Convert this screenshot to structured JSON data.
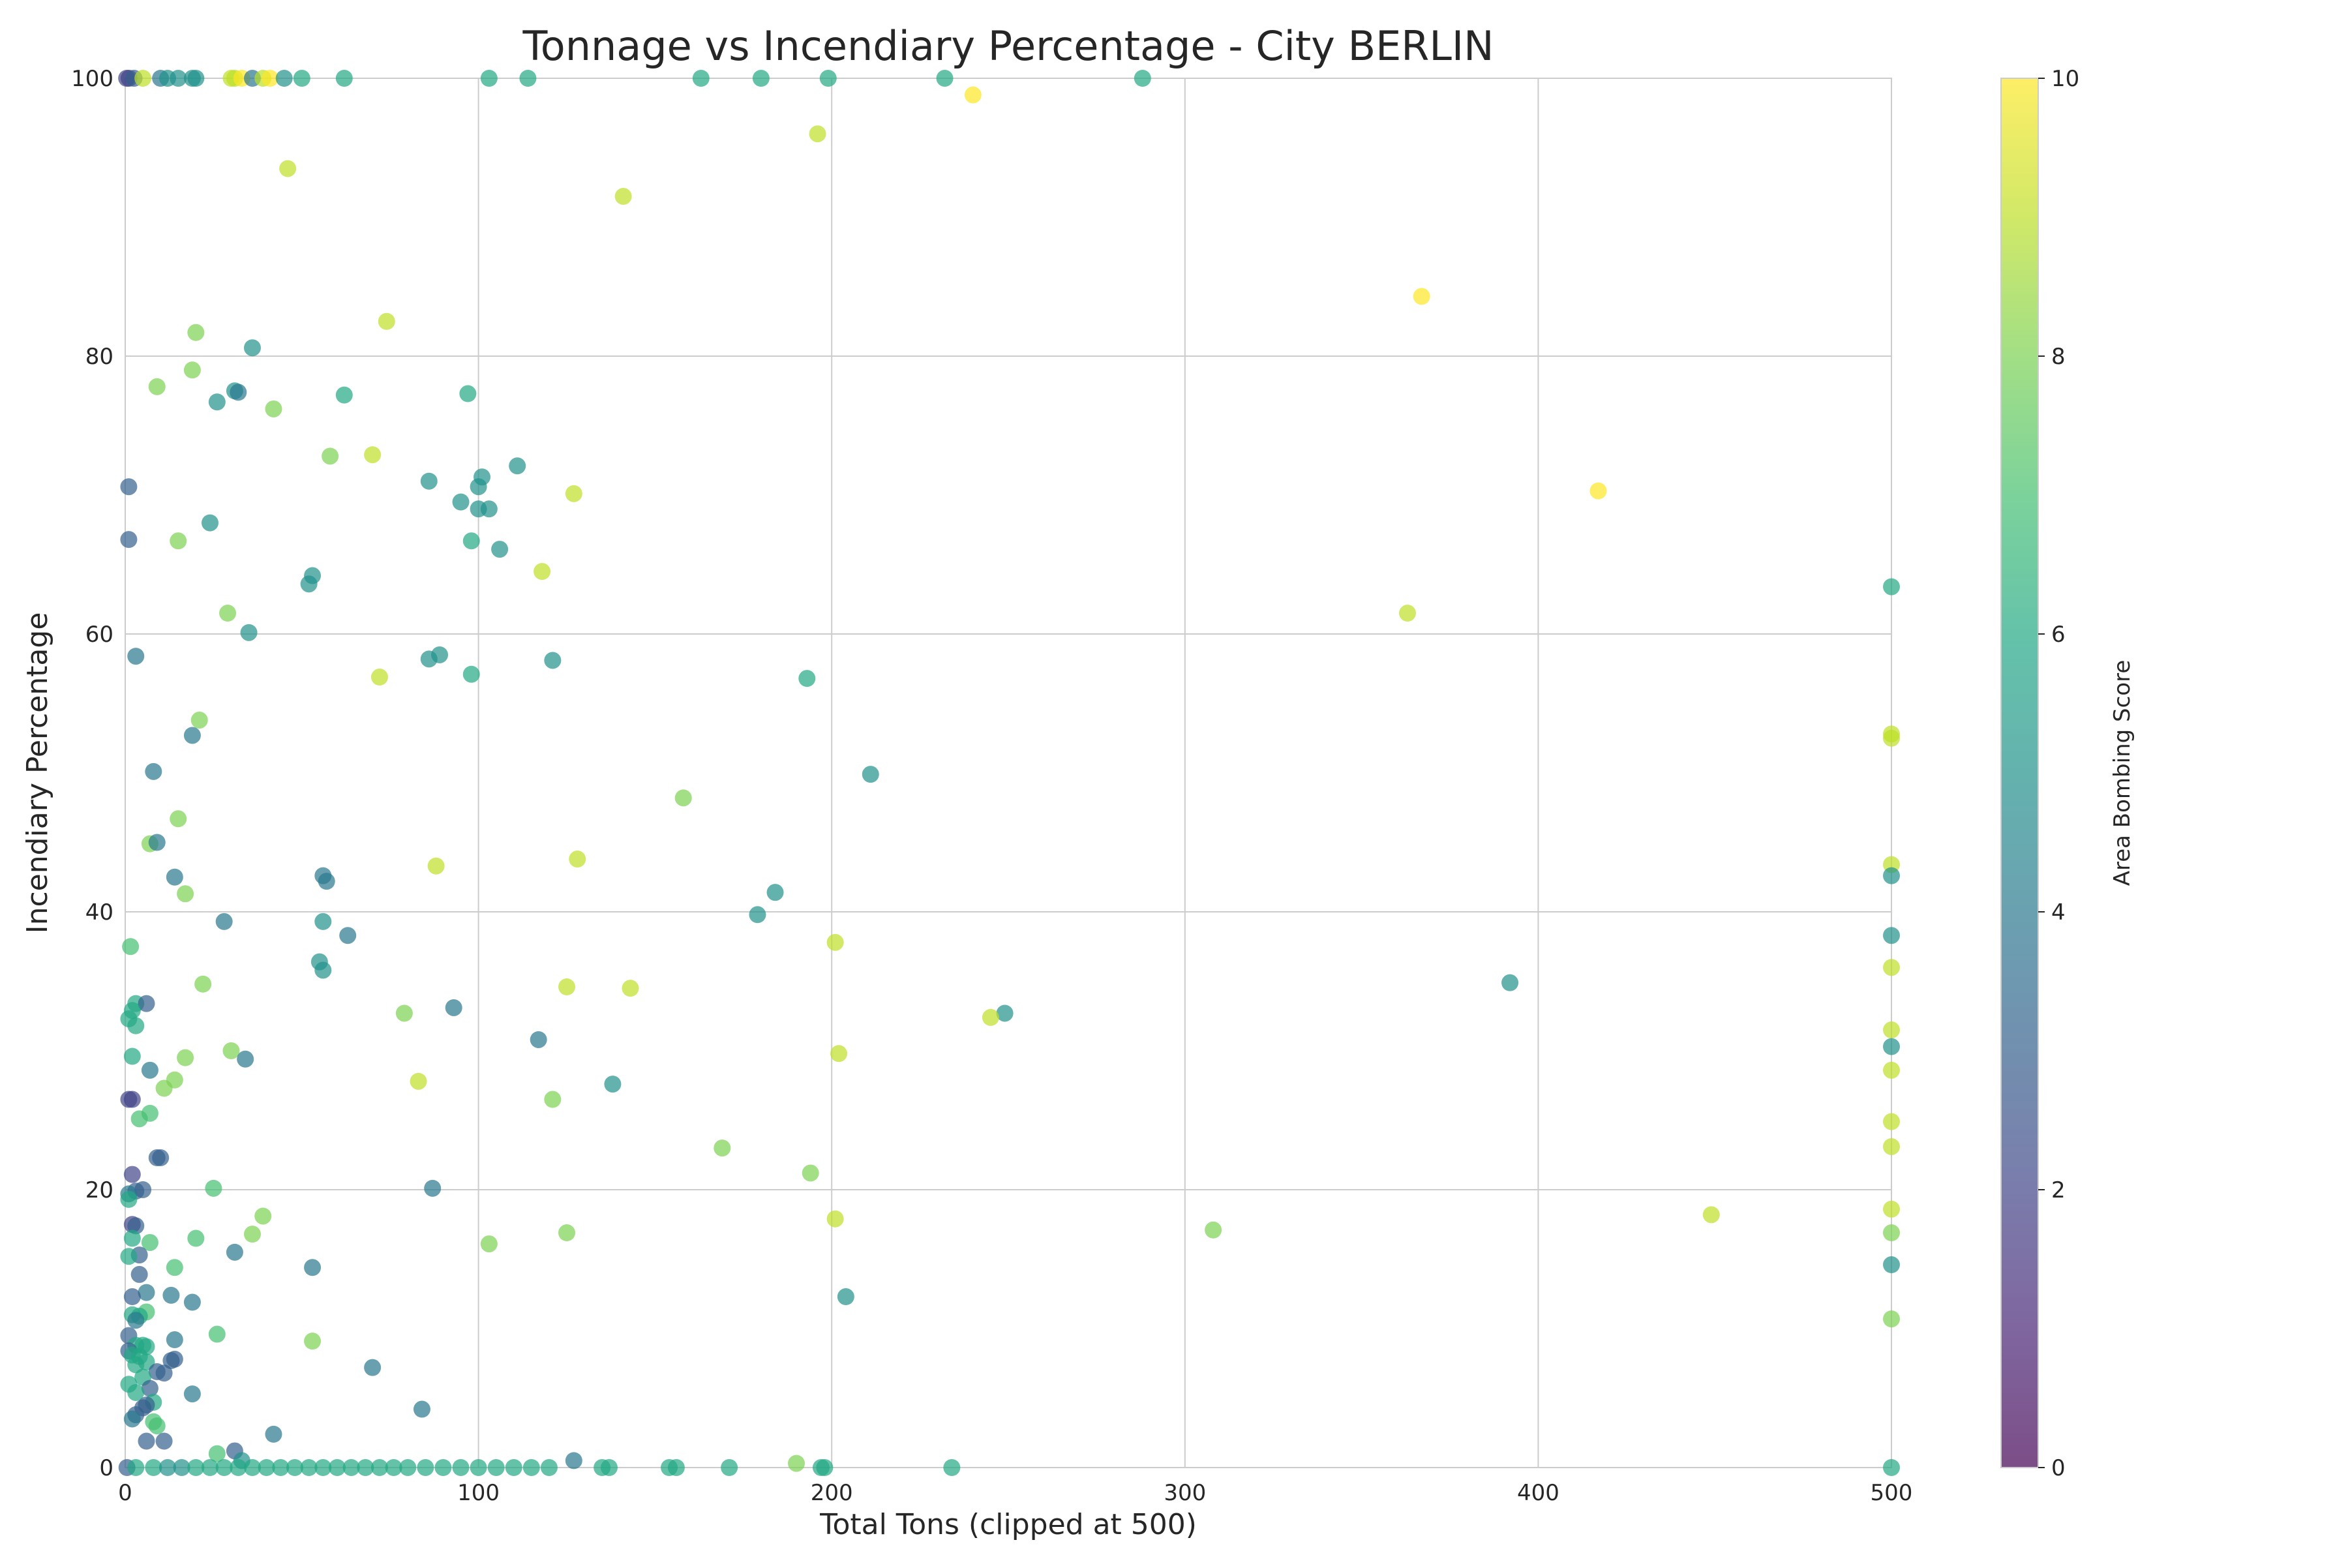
{
  "chart_data": {
    "type": "scatter",
    "title": "Tonnage vs Incendiary Percentage - City BERLIN",
    "xlabel": "Total Tons (clipped at 500)",
    "ylabel": "Incendiary Percentage",
    "xlim": [
      0,
      500
    ],
    "ylim": [
      0,
      100
    ],
    "xticks": [
      0,
      100,
      200,
      300,
      400,
      500
    ],
    "yticks": [
      0,
      20,
      40,
      60,
      80,
      100
    ],
    "grid": true,
    "marker_opacity": 0.7,
    "colorbar": {
      "label": "Area Bombing Score",
      "range": [
        0,
        10
      ],
      "ticks": [
        0,
        2,
        4,
        6,
        8,
        10
      ],
      "colormap": "viridis",
      "colors": [
        "#440154",
        "#3b528b",
        "#21918c",
        "#5ec962",
        "#fde725"
      ]
    },
    "points": [
      [
        0.4,
        100,
        2
      ],
      [
        1.1,
        100,
        2
      ],
      [
        2.5,
        100,
        3
      ],
      [
        5,
        100,
        9
      ],
      [
        10,
        100,
        4
      ],
      [
        12,
        100,
        5
      ],
      [
        15,
        100,
        5
      ],
      [
        19,
        100,
        5
      ],
      [
        20,
        100,
        5
      ],
      [
        30,
        100,
        9
      ],
      [
        31,
        100,
        9
      ],
      [
        33,
        100,
        10
      ],
      [
        36,
        100,
        4
      ],
      [
        39,
        100,
        9
      ],
      [
        41,
        100,
        10
      ],
      [
        45,
        100,
        5
      ],
      [
        50,
        100,
        6
      ],
      [
        62,
        100,
        6
      ],
      [
        103,
        100,
        6
      ],
      [
        114,
        100,
        6
      ],
      [
        163,
        100,
        6
      ],
      [
        180,
        100,
        6
      ],
      [
        199,
        100,
        6
      ],
      [
        232,
        100,
        6
      ],
      [
        288,
        100,
        6
      ],
      [
        240,
        98.8,
        10
      ],
      [
        196,
        96,
        9
      ],
      [
        46,
        93.5,
        9
      ],
      [
        141,
        91.5,
        9
      ],
      [
        367,
        84.3,
        10
      ],
      [
        74,
        82.5,
        9
      ],
      [
        20,
        81.7,
        8
      ],
      [
        36,
        80.6,
        5
      ],
      [
        19,
        79,
        8
      ],
      [
        9,
        77.8,
        8
      ],
      [
        31,
        77.5,
        5
      ],
      [
        32,
        77.4,
        4
      ],
      [
        62,
        77.2,
        6
      ],
      [
        97,
        77.3,
        6
      ],
      [
        26,
        76.7,
        5
      ],
      [
        42,
        76.2,
        8
      ],
      [
        58,
        72.8,
        8
      ],
      [
        70,
        72.9,
        9
      ],
      [
        111,
        72.1,
        5
      ],
      [
        101,
        71.3,
        5
      ],
      [
        86,
        71,
        5
      ],
      [
        100,
        70.6,
        5
      ],
      [
        1,
        70.6,
        3
      ],
      [
        127,
        70.1,
        9
      ],
      [
        417,
        70.3,
        10
      ],
      [
        95,
        69.5,
        5
      ],
      [
        100,
        69,
        5
      ],
      [
        103,
        69,
        5
      ],
      [
        24,
        68,
        5
      ],
      [
        1,
        66.8,
        3
      ],
      [
        15,
        66.7,
        8
      ],
      [
        98,
        66.7,
        6
      ],
      [
        106,
        66.1,
        5
      ],
      [
        118,
        64.5,
        9
      ],
      [
        53,
        64.2,
        5
      ],
      [
        52,
        63.6,
        5
      ],
      [
        500,
        63.4,
        6
      ],
      [
        29,
        61.5,
        8
      ],
      [
        363,
        61.5,
        9
      ],
      [
        35,
        60.1,
        5
      ],
      [
        3,
        58.4,
        4
      ],
      [
        89,
        58.5,
        5
      ],
      [
        86,
        58.2,
        5
      ],
      [
        121,
        58.1,
        5
      ],
      [
        98,
        57.1,
        6
      ],
      [
        72,
        56.9,
        9
      ],
      [
        193,
        56.8,
        6
      ],
      [
        21,
        53.8,
        8
      ],
      [
        19,
        52.7,
        4
      ],
      [
        500,
        52.8,
        9
      ],
      [
        500,
        52.5,
        9
      ],
      [
        211,
        49.9,
        5
      ],
      [
        8,
        50.1,
        4
      ],
      [
        158,
        48.2,
        8
      ],
      [
        15,
        46.7,
        8
      ],
      [
        7,
        44.9,
        8
      ],
      [
        9,
        45,
        4
      ],
      [
        128,
        43.8,
        9
      ],
      [
        88,
        43.3,
        9
      ],
      [
        500,
        43.4,
        9
      ],
      [
        56,
        42.6,
        4
      ],
      [
        57,
        42.2,
        4
      ],
      [
        14,
        42.5,
        4
      ],
      [
        500,
        42.6,
        5
      ],
      [
        184,
        41.4,
        5
      ],
      [
        17,
        41.3,
        8
      ],
      [
        179,
        39.8,
        5
      ],
      [
        28,
        39.3,
        4
      ],
      [
        56,
        39.3,
        5
      ],
      [
        500,
        38.3,
        5
      ],
      [
        63,
        38.3,
        4
      ],
      [
        201,
        37.8,
        9
      ],
      [
        1.5,
        37.5,
        7
      ],
      [
        55,
        36.4,
        5
      ],
      [
        500,
        36,
        9
      ],
      [
        56,
        35.8,
        5
      ],
      [
        392,
        34.9,
        5
      ],
      [
        22,
        34.8,
        8
      ],
      [
        125,
        34.6,
        9
      ],
      [
        143,
        34.5,
        9
      ],
      [
        3,
        33.4,
        6
      ],
      [
        6,
        33.4,
        3
      ],
      [
        93,
        33.1,
        4
      ],
      [
        2,
        32.9,
        6
      ],
      [
        79,
        32.7,
        8
      ],
      [
        249,
        32.7,
        5
      ],
      [
        245,
        32.4,
        9
      ],
      [
        1,
        32.3,
        6
      ],
      [
        3,
        31.8,
        6
      ],
      [
        500,
        31.5,
        9
      ],
      [
        117,
        30.8,
        4
      ],
      [
        500,
        30.3,
        5
      ],
      [
        30,
        30,
        8
      ],
      [
        202,
        29.8,
        9
      ],
      [
        2,
        29.6,
        6
      ],
      [
        17,
        29.5,
        8
      ],
      [
        34,
        29.4,
        4
      ],
      [
        7,
        28.6,
        4
      ],
      [
        500,
        28.6,
        9
      ],
      [
        14,
        27.9,
        8
      ],
      [
        83,
        27.8,
        9
      ],
      [
        138,
        27.6,
        5
      ],
      [
        11,
        27.3,
        8
      ],
      [
        121,
        26.5,
        8
      ],
      [
        1,
        26.5,
        2
      ],
      [
        2,
        26.5,
        2
      ],
      [
        7,
        25.5,
        7
      ],
      [
        4,
        25.1,
        7
      ],
      [
        500,
        24.9,
        9
      ],
      [
        169,
        23,
        8
      ],
      [
        500,
        23.1,
        9
      ],
      [
        9,
        22.3,
        3
      ],
      [
        10,
        22.3,
        3
      ],
      [
        194,
        21.2,
        8
      ],
      [
        2,
        21.1,
        2
      ],
      [
        5,
        20,
        3
      ],
      [
        25,
        20.1,
        7
      ],
      [
        87,
        20.1,
        4
      ],
      [
        3,
        19.9,
        3
      ],
      [
        1,
        19.7,
        4
      ],
      [
        1,
        19.3,
        6
      ],
      [
        500,
        18.6,
        9
      ],
      [
        449,
        18.2,
        9
      ],
      [
        39,
        18.1,
        8
      ],
      [
        201,
        17.9,
        9
      ],
      [
        2,
        17.5,
        2
      ],
      [
        3,
        17.4,
        3
      ],
      [
        308,
        17.1,
        8
      ],
      [
        125,
        16.9,
        8
      ],
      [
        36,
        16.8,
        8
      ],
      [
        500,
        16.9,
        8
      ],
      [
        2,
        16.5,
        6
      ],
      [
        20,
        16.5,
        7
      ],
      [
        7,
        16.2,
        7
      ],
      [
        103,
        16.1,
        8
      ],
      [
        31,
        15.5,
        4
      ],
      [
        4,
        15.3,
        3
      ],
      [
        1,
        15.2,
        6
      ],
      [
        500,
        14.6,
        5
      ],
      [
        53,
        14.4,
        4
      ],
      [
        14,
        14.4,
        7
      ],
      [
        4,
        13.9,
        3
      ],
      [
        6,
        12.6,
        4
      ],
      [
        13,
        12.4,
        4
      ],
      [
        2,
        12.3,
        3
      ],
      [
        204,
        12.3,
        5
      ],
      [
        19,
        11.9,
        4
      ],
      [
        6,
        11.2,
        7
      ],
      [
        2,
        11,
        6
      ],
      [
        4,
        10.9,
        6
      ],
      [
        500,
        10.7,
        8
      ],
      [
        3,
        10.6,
        4
      ],
      [
        1,
        9.5,
        3
      ],
      [
        14,
        9.2,
        4
      ],
      [
        53,
        9.1,
        8
      ],
      [
        26,
        9.6,
        7
      ],
      [
        3,
        8.8,
        6
      ],
      [
        5,
        8.8,
        6
      ],
      [
        6,
        8.7,
        6
      ],
      [
        1,
        8.4,
        3
      ],
      [
        2,
        8.1,
        6
      ],
      [
        4,
        8,
        6
      ],
      [
        14,
        7.8,
        3
      ],
      [
        13,
        7.7,
        3
      ],
      [
        6,
        7.6,
        6
      ],
      [
        3,
        7.4,
        6
      ],
      [
        70,
        7.2,
        4
      ],
      [
        9,
        6.9,
        3
      ],
      [
        11,
        6.8,
        3
      ],
      [
        5,
        6.5,
        6
      ],
      [
        1,
        6,
        6
      ],
      [
        7,
        5.7,
        3
      ],
      [
        3,
        5.4,
        6
      ],
      [
        19,
        5.3,
        4
      ],
      [
        8,
        4.7,
        6
      ],
      [
        6,
        4.5,
        3
      ],
      [
        5,
        4.3,
        3
      ],
      [
        84,
        4.2,
        4
      ],
      [
        3,
        3.8,
        3
      ],
      [
        2,
        3.5,
        4
      ],
      [
        8,
        3.3,
        7
      ],
      [
        9,
        3,
        7
      ],
      [
        42,
        2.4,
        4
      ],
      [
        11,
        1.9,
        3
      ],
      [
        6,
        1.9,
        3
      ],
      [
        31,
        1.2,
        3
      ],
      [
        26,
        1,
        7
      ],
      [
        33,
        0.5,
        5
      ],
      [
        127,
        0.5,
        4
      ],
      [
        190,
        0.3,
        8
      ],
      [
        0.5,
        0,
        3
      ],
      [
        3,
        0,
        6
      ],
      [
        8,
        0,
        6
      ],
      [
        12,
        0,
        5
      ],
      [
        16,
        0,
        5
      ],
      [
        20,
        0,
        6
      ],
      [
        24,
        0,
        6
      ],
      [
        28,
        0,
        6
      ],
      [
        32,
        0,
        6
      ],
      [
        36,
        0,
        6
      ],
      [
        40,
        0,
        6
      ],
      [
        44,
        0,
        6
      ],
      [
        48,
        0,
        6
      ],
      [
        52,
        0,
        6
      ],
      [
        56,
        0,
        6
      ],
      [
        60,
        0,
        6
      ],
      [
        64,
        0,
        6
      ],
      [
        68,
        0,
        6
      ],
      [
        72,
        0,
        6
      ],
      [
        76,
        0,
        6
      ],
      [
        80,
        0,
        6
      ],
      [
        85,
        0,
        6
      ],
      [
        90,
        0,
        6
      ],
      [
        95,
        0,
        6
      ],
      [
        100,
        0,
        6
      ],
      [
        105,
        0,
        6
      ],
      [
        110,
        0,
        6
      ],
      [
        115,
        0,
        6
      ],
      [
        120,
        0,
        6
      ],
      [
        135,
        0,
        6
      ],
      [
        137,
        0,
        6
      ],
      [
        154,
        0,
        6
      ],
      [
        156,
        0,
        6
      ],
      [
        171,
        0,
        6
      ],
      [
        197,
        0,
        6
      ],
      [
        198,
        0,
        6
      ],
      [
        234,
        0,
        6
      ],
      [
        500,
        0,
        6
      ]
    ]
  }
}
